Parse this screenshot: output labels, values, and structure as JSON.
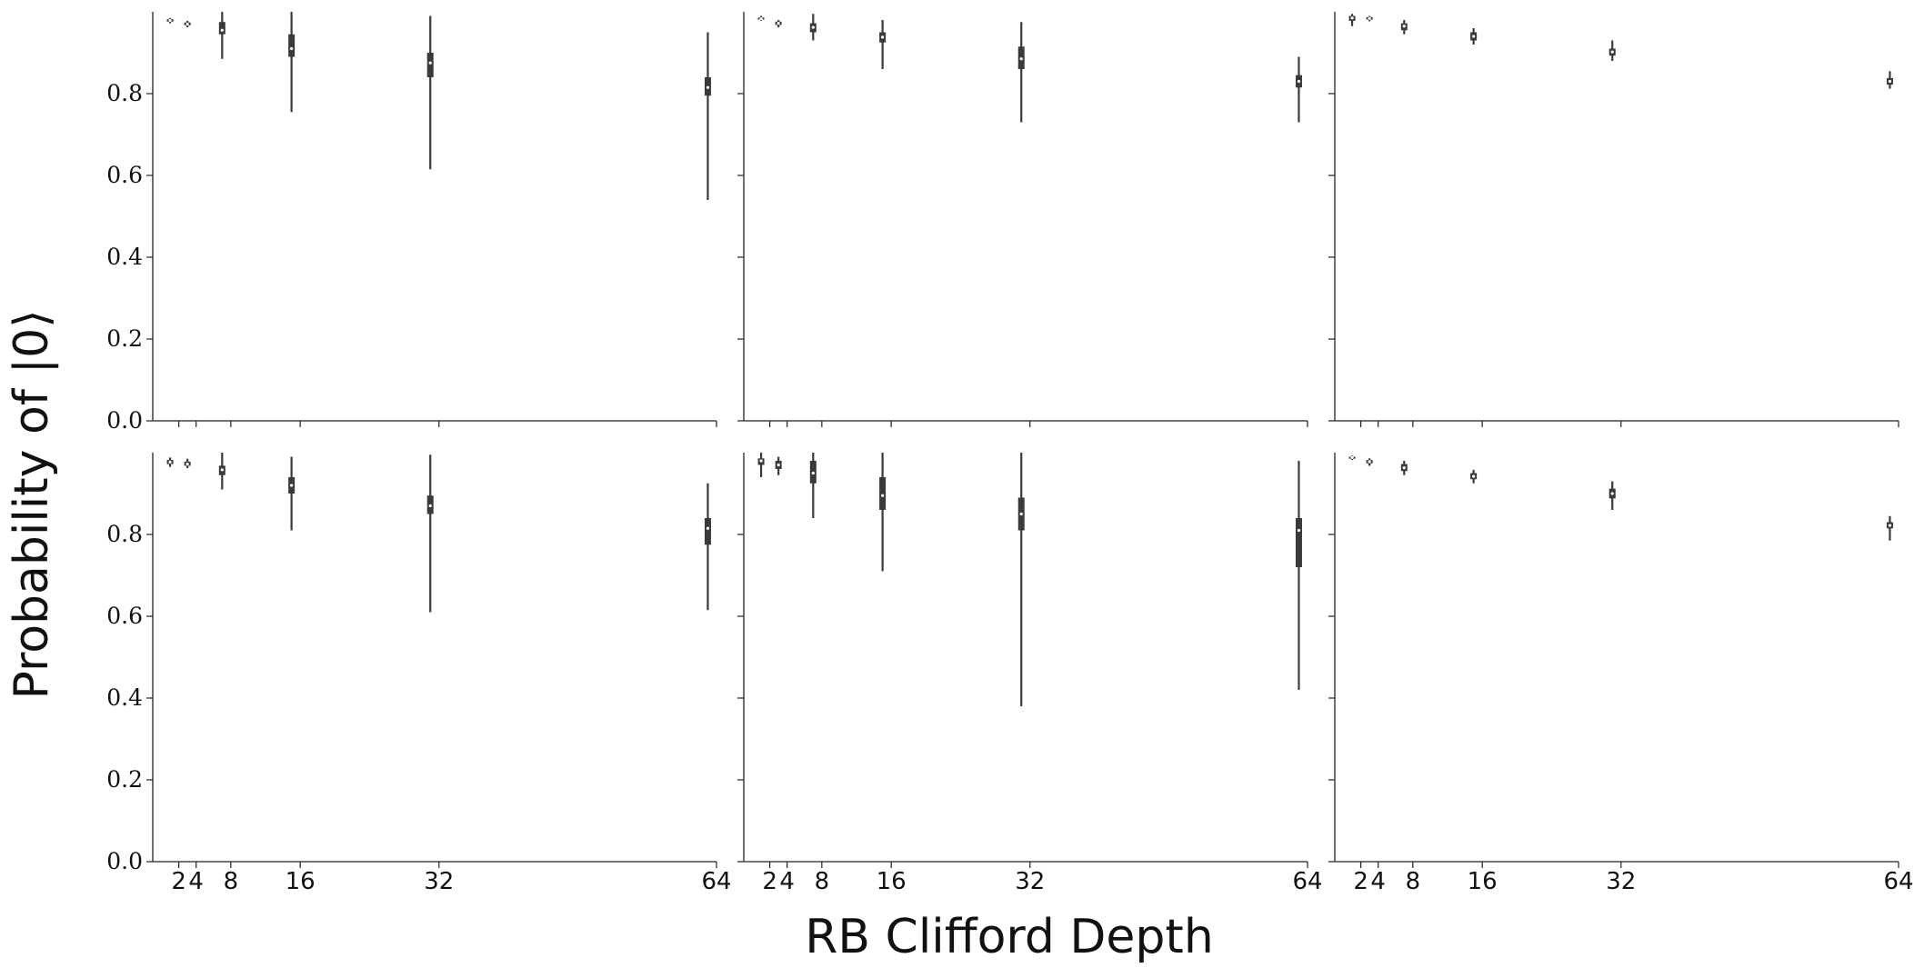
{
  "figure": {
    "xlabel": "RB Clifford Depth",
    "ylabel": "Probability of |0⟩"
  },
  "chart_data": {
    "type": "violin",
    "grid": false,
    "layout": "2 rows x 3 columns, shared axes",
    "x_ticks": [
      2,
      4,
      8,
      16,
      32,
      64
    ],
    "x_range": [
      -1,
      64
    ],
    "ylim": [
      0.0,
      1.0
    ],
    "y_ticks": [
      "0.0",
      "0.2",
      "0.4",
      "0.6",
      "0.8"
    ],
    "colors": {
      "body": "#3a3a3a",
      "median": "#ffffff"
    },
    "panels": [
      {
        "distributions": [
          {
            "x": 1,
            "min": 0.972,
            "q1": 0.976,
            "median": 0.979,
            "q3": 0.982,
            "max": 0.985
          },
          {
            "x": 3,
            "min": 0.962,
            "q1": 0.967,
            "median": 0.97,
            "q3": 0.974,
            "max": 0.978
          },
          {
            "x": 7,
            "min": 0.885,
            "q1": 0.945,
            "median": 0.955,
            "q3": 0.975,
            "max": 1.0
          },
          {
            "x": 15,
            "min": 0.755,
            "q1": 0.89,
            "median": 0.91,
            "q3": 0.945,
            "max": 1.0
          },
          {
            "x": 31,
            "min": 0.615,
            "q1": 0.84,
            "median": 0.875,
            "q3": 0.9,
            "max": 0.99
          },
          {
            "x": 63,
            "min": 0.54,
            "q1": 0.795,
            "median": 0.815,
            "q3": 0.84,
            "max": 0.95
          }
        ]
      },
      {
        "distributions": [
          {
            "x": 1,
            "min": 0.978,
            "q1": 0.981,
            "median": 0.983,
            "q3": 0.986,
            "max": 0.99
          },
          {
            "x": 3,
            "min": 0.962,
            "q1": 0.968,
            "median": 0.972,
            "q3": 0.976,
            "max": 0.98
          },
          {
            "x": 7,
            "min": 0.93,
            "q1": 0.95,
            "median": 0.962,
            "q3": 0.972,
            "max": 0.995
          },
          {
            "x": 15,
            "min": 0.86,
            "q1": 0.925,
            "median": 0.938,
            "q3": 0.95,
            "max": 0.98
          },
          {
            "x": 31,
            "min": 0.73,
            "q1": 0.86,
            "median": 0.885,
            "q3": 0.915,
            "max": 0.975
          },
          {
            "x": 63,
            "min": 0.73,
            "q1": 0.815,
            "median": 0.83,
            "q3": 0.845,
            "max": 0.89
          }
        ]
      },
      {
        "distributions": [
          {
            "x": 1,
            "min": 0.965,
            "q1": 0.978,
            "median": 0.985,
            "q3": 0.99,
            "max": 0.995
          },
          {
            "x": 3,
            "min": 0.977,
            "q1": 0.981,
            "median": 0.984,
            "q3": 0.987,
            "max": 0.99
          },
          {
            "x": 7,
            "min": 0.945,
            "q1": 0.955,
            "median": 0.965,
            "q3": 0.972,
            "max": 0.98
          },
          {
            "x": 15,
            "min": 0.92,
            "q1": 0.93,
            "median": 0.94,
            "q3": 0.95,
            "max": 0.96
          },
          {
            "x": 31,
            "min": 0.88,
            "q1": 0.893,
            "median": 0.902,
            "q3": 0.91,
            "max": 0.93
          },
          {
            "x": 63,
            "min": 0.812,
            "q1": 0.822,
            "median": 0.83,
            "q3": 0.838,
            "max": 0.855
          }
        ]
      },
      {
        "distributions": [
          {
            "x": 1,
            "min": 0.965,
            "q1": 0.972,
            "median": 0.977,
            "q3": 0.982,
            "max": 0.988
          },
          {
            "x": 3,
            "min": 0.962,
            "q1": 0.968,
            "median": 0.972,
            "q3": 0.978,
            "max": 0.985
          },
          {
            "x": 7,
            "min": 0.91,
            "q1": 0.945,
            "median": 0.958,
            "q3": 0.968,
            "max": 1.0
          },
          {
            "x": 15,
            "min": 0.81,
            "q1": 0.9,
            "median": 0.92,
            "q3": 0.94,
            "max": 0.99
          },
          {
            "x": 31,
            "min": 0.61,
            "q1": 0.85,
            "median": 0.87,
            "q3": 0.895,
            "max": 0.995
          },
          {
            "x": 63,
            "min": 0.615,
            "q1": 0.775,
            "median": 0.815,
            "q3": 0.84,
            "max": 0.925
          }
        ]
      },
      {
        "distributions": [
          {
            "x": 1,
            "min": 0.94,
            "q1": 0.97,
            "median": 0.98,
            "q3": 0.986,
            "max": 1.0
          },
          {
            "x": 3,
            "min": 0.945,
            "q1": 0.96,
            "median": 0.97,
            "q3": 0.98,
            "max": 0.99
          },
          {
            "x": 7,
            "min": 0.84,
            "q1": 0.925,
            "median": 0.95,
            "q3": 0.98,
            "max": 1.0
          },
          {
            "x": 15,
            "min": 0.71,
            "q1": 0.86,
            "median": 0.895,
            "q3": 0.94,
            "max": 1.0
          },
          {
            "x": 31,
            "min": 0.38,
            "q1": 0.81,
            "median": 0.85,
            "q3": 0.89,
            "max": 1.0
          },
          {
            "x": 63,
            "min": 0.42,
            "q1": 0.72,
            "median": 0.81,
            "q3": 0.84,
            "max": 0.98
          }
        ]
      },
      {
        "distributions": [
          {
            "x": 1,
            "min": 0.982,
            "q1": 0.985,
            "median": 0.988,
            "q3": 0.99,
            "max": 0.993
          },
          {
            "x": 3,
            "min": 0.968,
            "q1": 0.974,
            "median": 0.978,
            "q3": 0.982,
            "max": 0.986
          },
          {
            "x": 7,
            "min": 0.945,
            "q1": 0.955,
            "median": 0.963,
            "q3": 0.972,
            "max": 0.98
          },
          {
            "x": 15,
            "min": 0.925,
            "q1": 0.935,
            "median": 0.942,
            "q3": 0.95,
            "max": 0.958
          },
          {
            "x": 31,
            "min": 0.86,
            "q1": 0.888,
            "median": 0.9,
            "q3": 0.912,
            "max": 0.93
          },
          {
            "x": 63,
            "min": 0.785,
            "q1": 0.815,
            "median": 0.822,
            "q3": 0.83,
            "max": 0.845
          }
        ]
      }
    ]
  }
}
